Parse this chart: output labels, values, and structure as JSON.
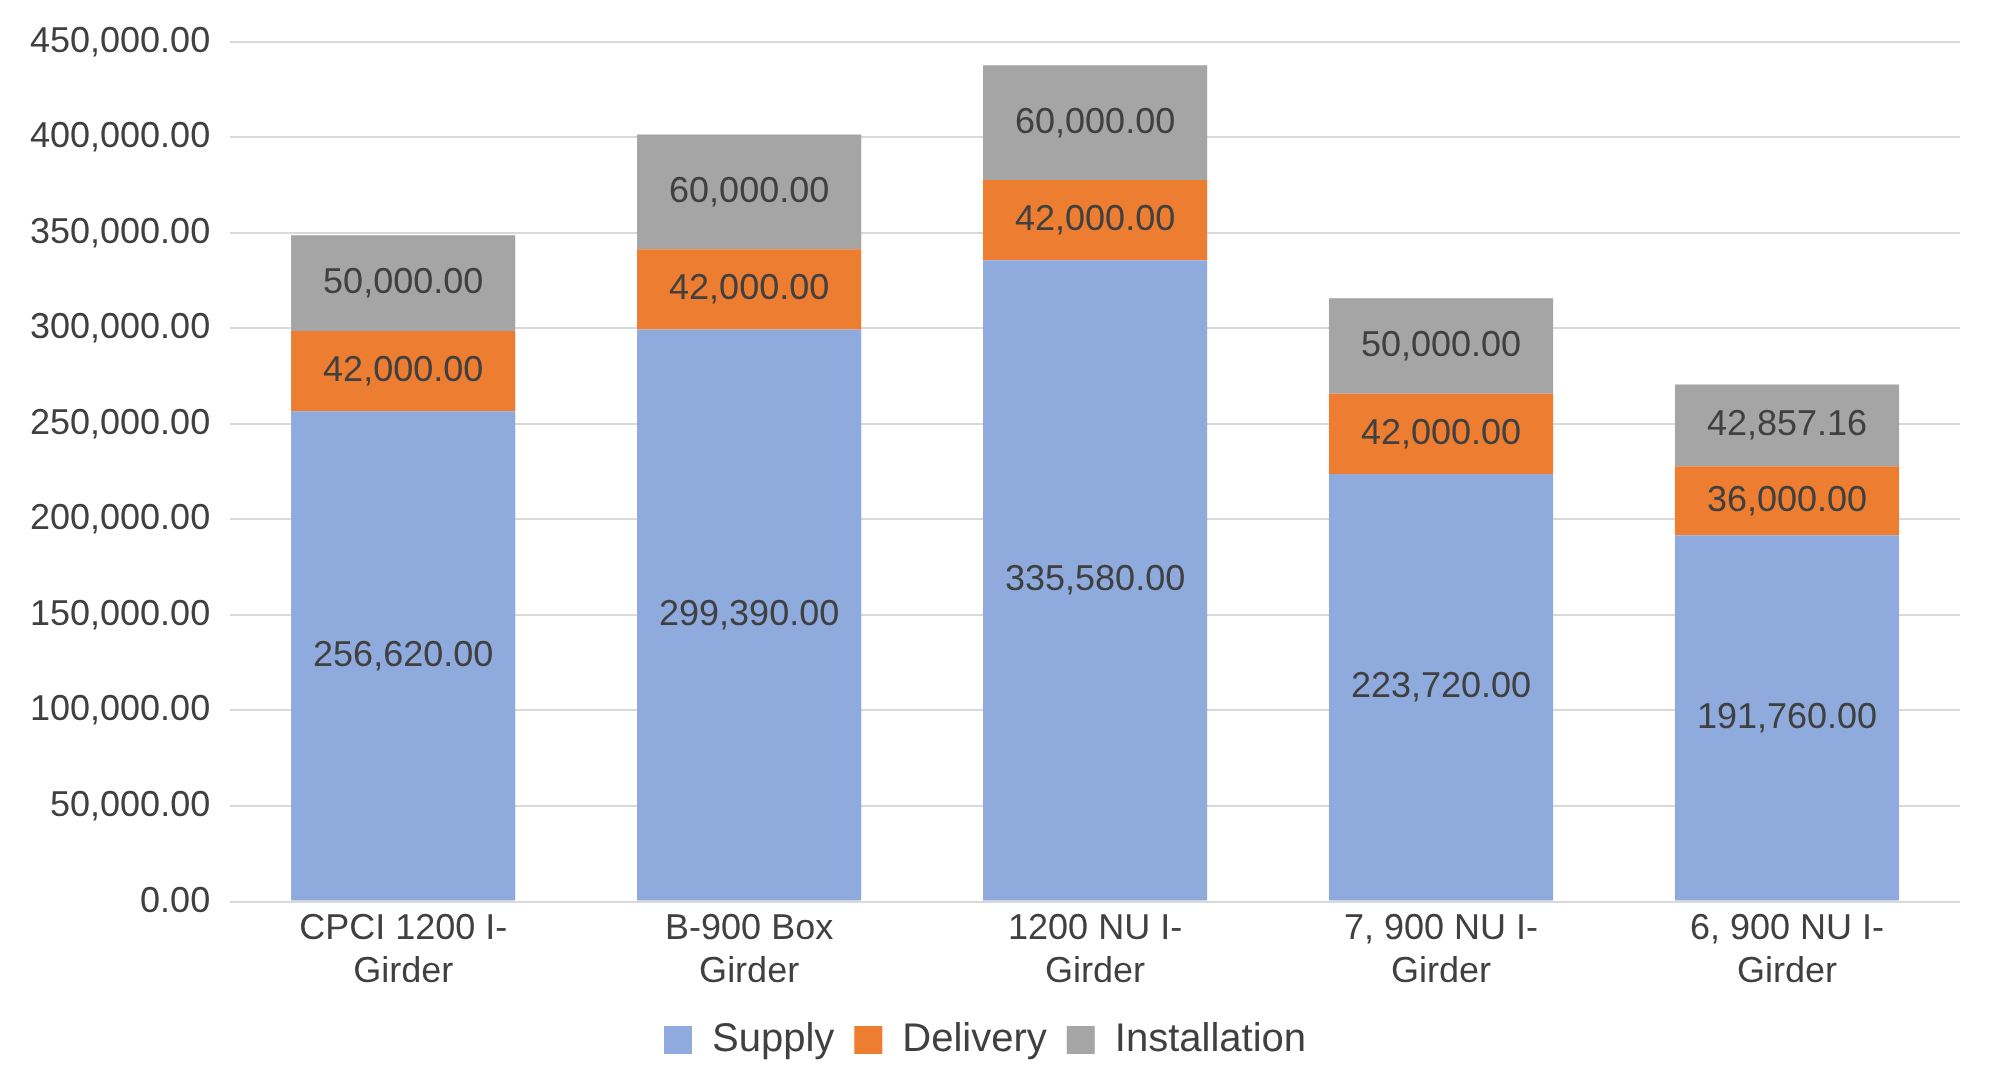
{
  "chart_data": {
    "type": "bar",
    "stacked": true,
    "categories": [
      "CPCI 1200 I-Girder",
      "B-900 Box Girder",
      "1200 NU I-Girder",
      "7, 900 NU I-Girder",
      "6, 900 NU I-Girder"
    ],
    "series": [
      {
        "name": "Supply",
        "color": "#8faadc",
        "values": [
          256620,
          299390,
          335580,
          223720,
          191760
        ],
        "value_labels": [
          "256,620.00",
          "299,390.00",
          "335,580.00",
          "223,720.00",
          "191,760.00"
        ]
      },
      {
        "name": "Delivery",
        "color": "#ed7d31",
        "values": [
          42000,
          42000,
          42000,
          42000,
          36000
        ],
        "value_labels": [
          "42,000.00",
          "42,000.00",
          "42,000.00",
          "42,000.00",
          "36,000.00"
        ]
      },
      {
        "name": "Installation",
        "color": "#a5a5a5",
        "values": [
          50000,
          60000,
          60000,
          50000,
          42857.16
        ],
        "value_labels": [
          "50,000.00",
          "60,000.00",
          "60,000.00",
          "50,000.00",
          "42,857.16"
        ]
      }
    ],
    "ylim": [
      0,
      450000
    ],
    "yticks": [
      {
        "value": 0,
        "label": "0.00"
      },
      {
        "value": 50000,
        "label": "50,000.00"
      },
      {
        "value": 100000,
        "label": "100,000.00"
      },
      {
        "value": 150000,
        "label": "150,000.00"
      },
      {
        "value": 200000,
        "label": "200,000.00"
      },
      {
        "value": 250000,
        "label": "250,000.00"
      },
      {
        "value": 300000,
        "label": "300,000.00"
      },
      {
        "value": 350000,
        "label": "350,000.00"
      },
      {
        "value": 400000,
        "label": "400,000.00"
      },
      {
        "value": 450000,
        "label": "450,000.00"
      }
    ],
    "grid": "y",
    "legend": "bottom"
  }
}
